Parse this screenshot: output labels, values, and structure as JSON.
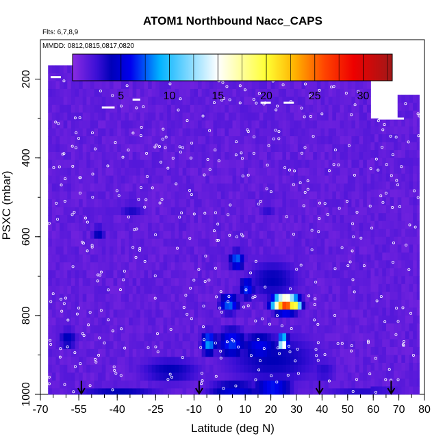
{
  "chart_data": {
    "type": "heatmap",
    "title": "ATOM1 Northbound Nacc_CAPS",
    "flights_label": "Flts: 6,7,8,9",
    "mmdd_label": "MMDD: 0812,0815,0817,0820",
    "xlabel": "Latitude (deg N)",
    "ylabel": "PSXC (mbar)",
    "xlim": [
      -70,
      80
    ],
    "ylim": [
      1000,
      100
    ],
    "y_reversed": true,
    "x_ticks": [
      -70,
      -55,
      -40,
      -25,
      -10,
      0,
      10,
      20,
      30,
      40,
      50,
      60,
      70,
      80
    ],
    "x_tick_labels": [
      "-70",
      "-55",
      "-40",
      "-25",
      "-10",
      "0",
      "10",
      "20",
      "30",
      "40",
      "50",
      "60",
      "70",
      "80"
    ],
    "x_minor_step": 5,
    "y_ticks": [
      200,
      400,
      600,
      800,
      1000
    ],
    "y_tick_labels": [
      "200",
      "400",
      "600",
      "800",
      "1000"
    ],
    "colorbar": {
      "min": 0,
      "max": 33,
      "ticks": [
        5,
        10,
        15,
        20,
        25,
        30
      ],
      "tick_labels": [
        "5",
        "10",
        "15",
        "20",
        "25",
        "30"
      ],
      "stops": [
        {
          "v": 0,
          "c": "#8a2be2"
        },
        {
          "v": 2.5,
          "c": "#3b0fd6"
        },
        {
          "v": 4,
          "c": "#0000b8"
        },
        {
          "v": 6,
          "c": "#0000ee"
        },
        {
          "v": 9,
          "c": "#00b2ff"
        },
        {
          "v": 15,
          "c": "#ffffff"
        },
        {
          "v": 20,
          "c": "#ffff33"
        },
        {
          "v": 23,
          "c": "#ffb000"
        },
        {
          "v": 26,
          "c": "#ff4400"
        },
        {
          "v": 29,
          "c": "#ee0000"
        },
        {
          "v": 33,
          "c": "#a01818"
        }
      ]
    },
    "field": {
      "lat_range": [
        -67,
        78
      ],
      "p_top": 165,
      "background_value": 1.3,
      "features": [
        {
          "lat": -48,
          "p": 580,
          "val": 4.5,
          "lat_w": 3,
          "p_w": 20
        },
        {
          "lat": -35,
          "p": 520,
          "val": 3.5,
          "lat_w": 6,
          "p_w": 20
        },
        {
          "lat": 18,
          "p": 520,
          "val": 3.0,
          "lat_w": 4,
          "p_w": 20
        },
        {
          "lat": 20,
          "p": 700,
          "val": 4.0,
          "lat_w": 12,
          "p_w": 60
        },
        {
          "lat": 6,
          "p": 650,
          "val": 8.0,
          "lat_w": 3,
          "p_w": 25
        },
        {
          "lat": 10,
          "p": 720,
          "val": 7.0,
          "lat_w": 3,
          "p_w": 30
        },
        {
          "lat": 25,
          "p": 760,
          "val": 28.0,
          "lat_w": 5,
          "p_w": 20
        },
        {
          "lat": 22,
          "p": 760,
          "val": 18.0,
          "lat_w": 2,
          "p_w": 15
        },
        {
          "lat": 29,
          "p": 760,
          "val": 22.0,
          "lat_w": 2,
          "p_w": 15
        },
        {
          "lat": 3,
          "p": 760,
          "val": 8.0,
          "lat_w": 4,
          "p_w": 25
        },
        {
          "lat": -5,
          "p": 860,
          "val": 9.0,
          "lat_w": 3,
          "p_w": 30
        },
        {
          "lat": 4,
          "p": 860,
          "val": 7.0,
          "lat_w": 6,
          "p_w": 40
        },
        {
          "lat": 24,
          "p": 860,
          "val": 17.0,
          "lat_w": 2,
          "p_w": 20
        },
        {
          "lat": 15,
          "p": 870,
          "val": 6.0,
          "lat_w": 8,
          "p_w": 40
        },
        {
          "lat": 20,
          "p": 900,
          "val": 4.0,
          "lat_w": 22,
          "p_w": 80
        },
        {
          "lat": -60,
          "p": 850,
          "val": 4.5,
          "lat_w": 4,
          "p_w": 30
        },
        {
          "lat": -20,
          "p": 930,
          "val": 4.0,
          "lat_w": 14,
          "p_w": 40
        },
        {
          "lat": 5,
          "p": 980,
          "val": 5.5,
          "lat_w": 12,
          "p_w": 25
        },
        {
          "lat": 20,
          "p": 975,
          "val": 7.0,
          "lat_w": 8,
          "p_w": 30
        },
        {
          "lat": -40,
          "p": 985,
          "val": 4.0,
          "lat_w": 20,
          "p_w": 20
        },
        {
          "lat": 55,
          "p": 985,
          "val": 3.0,
          "lat_w": 20,
          "p_w": 20
        },
        {
          "lat": 40,
          "p": 930,
          "val": 3.0,
          "lat_w": 6,
          "p_w": 40
        }
      ]
    },
    "arrows_lat": [
      -54,
      -8,
      39,
      67
    ],
    "sample_dots": {
      "count": 420,
      "color": "#ffffff"
    }
  }
}
